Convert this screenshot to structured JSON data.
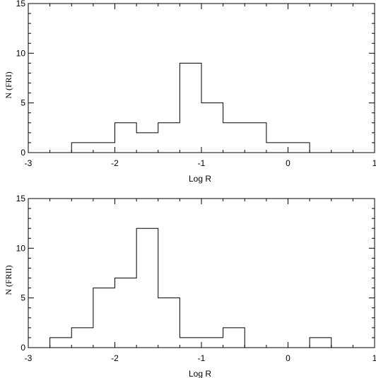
{
  "chart_data": [
    {
      "type": "histogram",
      "xlabel": "Log R",
      "ylabel": "N  (FRI)",
      "xlim": [
        -3,
        1
      ],
      "ylim": [
        0,
        15
      ],
      "xticks": [
        -3,
        -2,
        -1,
        0,
        1
      ],
      "yticks": [
        0,
        5,
        10,
        15
      ],
      "bin_width": 0.25,
      "bins": [
        {
          "x0": -2.5,
          "x1": -2.25,
          "count": 1
        },
        {
          "x0": -2.25,
          "x1": -2.0,
          "count": 1
        },
        {
          "x0": -2.0,
          "x1": -1.75,
          "count": 3
        },
        {
          "x0": -1.75,
          "x1": -1.5,
          "count": 2
        },
        {
          "x0": -1.5,
          "x1": -1.25,
          "count": 3
        },
        {
          "x0": -1.25,
          "x1": -1.0,
          "count": 9
        },
        {
          "x0": -1.0,
          "x1": -0.75,
          "count": 5
        },
        {
          "x0": -0.75,
          "x1": -0.5,
          "count": 3
        },
        {
          "x0": -0.5,
          "x1": -0.25,
          "count": 3
        },
        {
          "x0": -0.25,
          "x1": 0.0,
          "count": 1
        },
        {
          "x0": 0.0,
          "x1": 0.25,
          "count": 1
        }
      ]
    },
    {
      "type": "histogram",
      "xlabel": "Log R",
      "ylabel": "N  (FRII)",
      "xlim": [
        -3,
        1
      ],
      "ylim": [
        0,
        15
      ],
      "xticks": [
        -3,
        -2,
        -1,
        0,
        1
      ],
      "yticks": [
        0,
        5,
        10,
        15
      ],
      "bin_width": 0.25,
      "bins": [
        {
          "x0": -2.75,
          "x1": -2.5,
          "count": 1
        },
        {
          "x0": -2.5,
          "x1": -2.25,
          "count": 2
        },
        {
          "x0": -2.25,
          "x1": -2.0,
          "count": 6
        },
        {
          "x0": -2.0,
          "x1": -1.75,
          "count": 7
        },
        {
          "x0": -1.75,
          "x1": -1.5,
          "count": 12
        },
        {
          "x0": -1.5,
          "x1": -1.25,
          "count": 5
        },
        {
          "x0": -1.25,
          "x1": -1.0,
          "count": 1
        },
        {
          "x0": -1.0,
          "x1": -0.75,
          "count": 1
        },
        {
          "x0": -0.75,
          "x1": -0.5,
          "count": 2
        },
        {
          "x0": -0.5,
          "x1": -0.25,
          "count": 0
        },
        {
          "x0": -0.25,
          "x1": 0.0,
          "count": 0
        },
        {
          "x0": 0.0,
          "x1": 0.25,
          "count": 0
        },
        {
          "x0": 0.25,
          "x1": 0.5,
          "count": 1
        }
      ]
    }
  ]
}
